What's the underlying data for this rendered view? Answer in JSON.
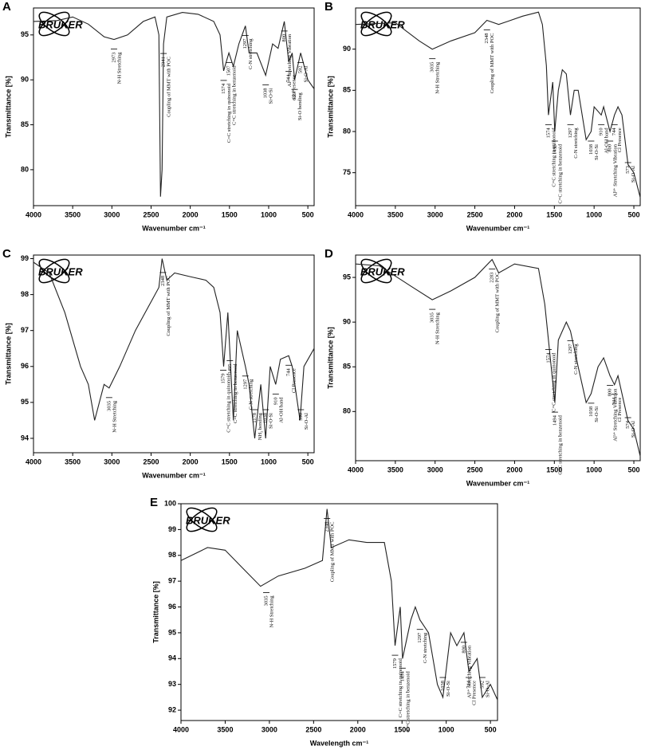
{
  "chart_data": [
    {
      "type": "line",
      "panel": "A",
      "logo": "BRUKER",
      "ylabel": "Transmittance [%]",
      "xlabel": "Wavenumber cm⁻¹",
      "xlim": [
        4000,
        420
      ],
      "xticks": [
        4000,
        3500,
        3000,
        2500,
        2000,
        1500,
        1000,
        500
      ],
      "ylim": [
        76,
        98
      ],
      "yticks": [
        80,
        85,
        90,
        95
      ],
      "color": "#222",
      "x": [
        4000,
        3700,
        3500,
        3300,
        3100,
        2973,
        2800,
        2600,
        2450,
        2400,
        2380,
        2360,
        2341,
        2300,
        2100,
        1900,
        1700,
        1620,
        1574,
        1507,
        1450,
        1380,
        1297,
        1250,
        1150,
        1038,
        950,
        880,
        800,
        744,
        700,
        669,
        592,
        500,
        420
      ],
      "values": [
        96.5,
        96.6,
        97,
        96.2,
        94.8,
        94.5,
        95,
        96.5,
        97,
        95,
        77,
        80,
        94,
        97,
        97.5,
        97.3,
        96.5,
        95,
        91,
        93,
        91.5,
        94,
        96,
        93,
        93,
        90.5,
        94,
        93.5,
        96.5,
        92,
        93,
        90,
        93,
        90,
        89
      ],
      "annotations": [
        {
          "wavenumber": 2973,
          "text": "N-H Stretching"
        },
        {
          "wavenumber": 2341,
          "text": "Coupling of MMT with POC"
        },
        {
          "wavenumber": 1574,
          "text": "C=C stretching in quinonoid"
        },
        {
          "wavenumber": 1507,
          "text": "C=C stretching in benzenoid"
        },
        {
          "wavenumber": 1297,
          "text": "C-N stretching"
        },
        {
          "wavenumber": 1038,
          "text": "Si-O-Si"
        },
        {
          "wavenumber": 800,
          "text": "Al³⁺ Stretching Vibration"
        },
        {
          "wavenumber": 744,
          "text": "Cl Presence"
        },
        {
          "wavenumber": 669,
          "text": "Si-O bending"
        },
        {
          "wavenumber": 592,
          "text": "Si-O-Al"
        }
      ]
    },
    {
      "type": "line",
      "panel": "B",
      "logo": "BRUKER",
      "ylabel": "Transmittance [%]",
      "xlabel": "Wavenumber cm⁻¹",
      "xlim": [
        4000,
        420
      ],
      "xticks": [
        4000,
        3500,
        3000,
        2500,
        2000,
        1500,
        1000,
        500
      ],
      "ylim": [
        71,
        95
      ],
      "yticks": [
        75,
        80,
        85,
        90
      ],
      "color": "#222",
      "x": [
        4000,
        3500,
        3200,
        3035,
        2800,
        2500,
        2348,
        2200,
        1900,
        1700,
        1650,
        1600,
        1574,
        1520,
        1495,
        1450,
        1400,
        1350,
        1297,
        1250,
        1200,
        1100,
        1038,
        1000,
        910,
        880,
        800,
        744,
        700,
        650,
        573,
        500,
        420
      ],
      "values": [
        93,
        93.2,
        91,
        90,
        91,
        92,
        93.5,
        93,
        94,
        94.5,
        93,
        88,
        82,
        86,
        80,
        85,
        87.5,
        87,
        82,
        85,
        85,
        79,
        80,
        83,
        82,
        83,
        80,
        82,
        83,
        82,
        76,
        75,
        72
      ],
      "annotations": [
        {
          "wavenumber": 3035,
          "text": "N-H Stretching"
        },
        {
          "wavenumber": 2348,
          "text": "Coupling of MMT with POC"
        },
        {
          "wavenumber": 1574,
          "text": "C=C stretching in quinonoid"
        },
        {
          "wavenumber": 1495,
          "text": "C=C stretching in benzenoid"
        },
        {
          "wavenumber": 1297,
          "text": "C-N stretching"
        },
        {
          "wavenumber": 1038,
          "text": "Si-O-Si"
        },
        {
          "wavenumber": 910,
          "text": "Al-OH band"
        },
        {
          "wavenumber": 800,
          "text": "Al³⁺ Stretching Vibration"
        },
        {
          "wavenumber": 744,
          "text": "Cl Presence"
        },
        {
          "wavenumber": 573,
          "text": "Si-O-Al"
        }
      ]
    },
    {
      "type": "line",
      "panel": "C",
      "logo": "BRUKER",
      "ylabel": "Transmittance [%]",
      "xlabel": "Wavenumber cm⁻¹",
      "xlim": [
        4000,
        420
      ],
      "xticks": [
        4000,
        3500,
        3000,
        2500,
        2000,
        1500,
        1000,
        500
      ],
      "ylim": [
        93.6,
        99.1
      ],
      "yticks": [
        94,
        95,
        96,
        97,
        98,
        99
      ],
      "color": "#222",
      "x": [
        4000,
        3800,
        3600,
        3400,
        3300,
        3220,
        3100,
        3035,
        2900,
        2700,
        2500,
        2400,
        2360,
        2300,
        2200,
        2000,
        1800,
        1700,
        1620,
        1574,
        1520,
        1450,
        1400,
        1297,
        1250,
        1178,
        1100,
        1038,
        980,
        910,
        850,
        744,
        700,
        600,
        550,
        420
      ],
      "values": [
        98.9,
        98.6,
        97.5,
        96,
        95.5,
        94.5,
        95.5,
        95.4,
        96,
        97,
        97.8,
        98.2,
        99,
        98.4,
        98.6,
        98.5,
        98.4,
        98.2,
        97.5,
        96,
        97.5,
        94.5,
        97,
        96,
        95.5,
        94,
        95.5,
        94,
        96,
        95.5,
        96.2,
        96.3,
        96,
        94.5,
        96,
        96.5
      ],
      "annotations": [
        {
          "wavenumber": 3035,
          "text": "N-H Stretching"
        },
        {
          "wavenumber": 2348,
          "text": "Coupling of MMT with POC"
        },
        {
          "wavenumber": 1579,
          "text": "C=C stretching in quinonoid"
        },
        {
          "wavenumber": 1495,
          "text": "C=C stretching in benzenoid"
        },
        {
          "wavenumber": 1297,
          "text": "C-N stretching"
        },
        {
          "wavenumber": 1178,
          "text": "NH₂ bending"
        },
        {
          "wavenumber": 1038,
          "text": "Si-O-Si"
        },
        {
          "wavenumber": 910,
          "text": "Al-OH band"
        },
        {
          "wavenumber": 744,
          "text": "Cl Presence"
        },
        {
          "wavenumber": 590,
          "text": "Si-O-Al"
        }
      ]
    },
    {
      "type": "line",
      "panel": "D",
      "logo": "BRUKER",
      "ylabel": "Transmittance [%]",
      "xlabel": "Wavenumber cm⁻¹",
      "xlim": [
        4000,
        420
      ],
      "xticks": [
        4000,
        3500,
        3000,
        2500,
        2000,
        1500,
        1000,
        500
      ],
      "ylim": [
        74.5,
        97.5
      ],
      "yticks": [
        80,
        85,
        90,
        95
      ],
      "color": "#222",
      "x": [
        4000,
        3700,
        3300,
        3035,
        2800,
        2500,
        2283,
        2200,
        2000,
        1700,
        1620,
        1574,
        1494,
        1450,
        1350,
        1297,
        1200,
        1100,
        1038,
        950,
        880,
        800,
        744,
        700,
        574,
        500,
        420
      ],
      "values": [
        96.5,
        96.3,
        94,
        92.5,
        93.5,
        95,
        97,
        95.5,
        96.5,
        96,
        92,
        88,
        81,
        88,
        90,
        89,
        85,
        81,
        82,
        85,
        86,
        84,
        83,
        84,
        79,
        78,
        75
      ],
      "annotations": [
        {
          "wavenumber": 3035,
          "text": "N-H Stretching"
        },
        {
          "wavenumber": 2283,
          "text": "Coupling of MMT with POC"
        },
        {
          "wavenumber": 1574,
          "text": "C=C stretching in quinonoid"
        },
        {
          "wavenumber": 1494,
          "text": "C=C stretching in benzenoid"
        },
        {
          "wavenumber": 1297,
          "text": "C-N stretching"
        },
        {
          "wavenumber": 1038,
          "text": "Si-O-Si"
        },
        {
          "wavenumber": 800,
          "text": "Al³⁺ Stretching Vibration"
        },
        {
          "wavenumber": 744,
          "text": "Cl Presence"
        },
        {
          "wavenumber": 574,
          "text": "Si-O-Al"
        }
      ]
    },
    {
      "type": "line",
      "panel": "E",
      "logo": "BRUKER",
      "ylabel": "Transmittance [%]",
      "xlabel": "Wavelength cm⁻¹",
      "xlim": [
        4000,
        420
      ],
      "xticks": [
        4000,
        3500,
        3000,
        2500,
        2000,
        1500,
        1000,
        500
      ],
      "ylim": [
        91.6,
        100
      ],
      "yticks": [
        92,
        93,
        94,
        95,
        96,
        97,
        98,
        99,
        100
      ],
      "color": "#222",
      "x": [
        4000,
        3700,
        3500,
        3300,
        3100,
        2900,
        2600,
        2400,
        2348,
        2300,
        2100,
        1900,
        1700,
        1620,
        1579,
        1520,
        1494,
        1400,
        1350,
        1297,
        1200,
        1100,
        1038,
        950,
        880,
        800,
        744,
        650,
        592,
        500,
        420
      ],
      "values": [
        97.8,
        98.3,
        98.2,
        97.5,
        96.8,
        97.2,
        97.5,
        97.8,
        99.8,
        98.3,
        98.6,
        98.5,
        98.5,
        97,
        94.5,
        96,
        94,
        95.5,
        96,
        95.5,
        95,
        93,
        92.5,
        95,
        94.5,
        95,
        93.5,
        94,
        92.5,
        93,
        92.4
      ],
      "annotations": [
        {
          "wavenumber": 3035,
          "text": "N-H Stretching"
        },
        {
          "wavenumber": 2348,
          "text": "Coupling of MMT with POC"
        },
        {
          "wavenumber": 1579,
          "text": "C=C stretching in quinonoid"
        },
        {
          "wavenumber": 1494,
          "text": "C=C stretching in benzenoid"
        },
        {
          "wavenumber": 1297,
          "text": "C-N stretching"
        },
        {
          "wavenumber": 1038,
          "text": "Si-O-Si"
        },
        {
          "wavenumber": 800,
          "text": "Al³⁺ Stretching Vibration"
        },
        {
          "wavenumber": 744,
          "text": "Cl Presence"
        },
        {
          "wavenumber": 592,
          "text": "Si-O-Al"
        }
      ]
    }
  ]
}
